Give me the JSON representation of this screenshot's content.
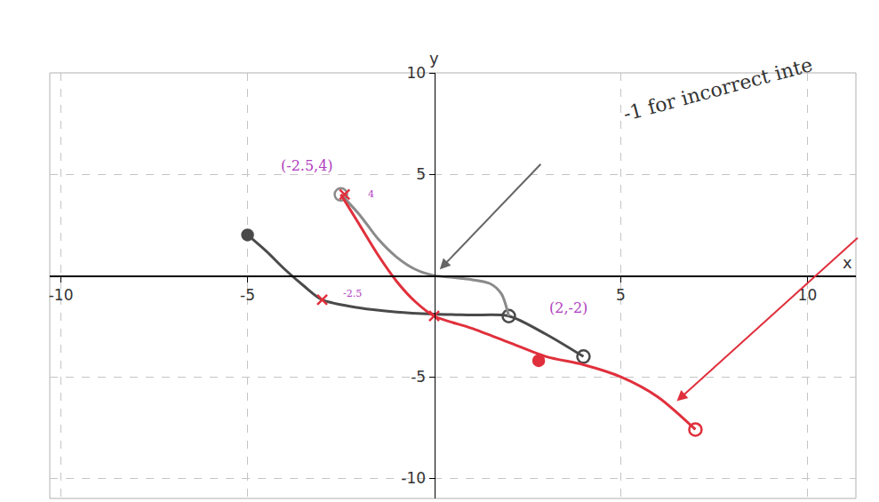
{
  "chart_data": {
    "type": "line",
    "xlim": [
      -10.3,
      11.3
    ],
    "ylim": [
      -11,
      10
    ],
    "xticks": [
      -10,
      -5,
      5,
      10
    ],
    "yticks": [
      -10,
      -5,
      5,
      10
    ],
    "grid": true,
    "x_label": "x",
    "y_label": "y",
    "series": [
      {
        "type": "line",
        "color": "#4a4a4a",
        "x": [
          -5,
          -4.5,
          -4,
          -3.5,
          -3,
          -2,
          -1,
          0,
          1,
          2,
          3,
          4
        ],
        "values": [
          2,
          1.2,
          0.3,
          -0.5,
          -1.2,
          -1.6,
          -1.8,
          -1.9,
          -1.95,
          -2,
          -2.9,
          -4
        ]
      },
      {
        "type": "scatter",
        "color": "#4a4a4a",
        "marker": "filled circle",
        "x": [
          -5
        ],
        "values": [
          2
        ]
      },
      {
        "type": "scatter",
        "color": "#4a4a4a",
        "marker": "open circle",
        "x": [
          2,
          4
        ],
        "values": [
          -2,
          -4
        ]
      },
      {
        "type": "line",
        "color": "#8a8a8a",
        "x": [
          -2.5,
          -2,
          -1.5,
          -1,
          -0.5,
          0,
          0.5,
          1,
          1.5,
          1.8,
          2
        ],
        "values": [
          4,
          3,
          1.8,
          0.9,
          0.3,
          0,
          -0.1,
          -0.2,
          -0.4,
          -0.9,
          -2
        ]
      },
      {
        "type": "scatter",
        "color": "#8a8a8a",
        "marker": "open circle",
        "x": [
          -2.5
        ],
        "values": [
          4
        ]
      },
      {
        "type": "line",
        "color": "#e0303c",
        "x": [
          -2.5,
          -2,
          -1.5,
          -1,
          -0.5,
          0,
          1,
          2,
          3,
          4,
          5,
          6,
          7
        ],
        "values": [
          4,
          2.5,
          1,
          -0.3,
          -1.3,
          -2,
          -2.6,
          -3.3,
          -4,
          -4.4,
          -5,
          -6,
          -7.6
        ]
      },
      {
        "type": "scatter",
        "color": "#e0303c",
        "marker": "x",
        "x": [
          -3,
          0,
          -2.4
        ],
        "values": [
          -1.2,
          -2,
          4
        ]
      },
      {
        "type": "scatter",
        "color": "#e0303c",
        "marker": "filled circle",
        "x": [
          2.8
        ],
        "values": [
          -4.2
        ]
      },
      {
        "type": "scatter",
        "color": "#e0303c",
        "marker": "open circle",
        "x": [
          7
        ],
        "values": [
          -7.6
        ]
      }
    ],
    "annotations": [
      {
        "text": "(-2.5,4)",
        "x": -3.4,
        "y": 5.4,
        "color": "#b040c0"
      },
      {
        "text": "(2,-2)",
        "x": 3.6,
        "y": -1.6,
        "color": "#b040c0"
      },
      {
        "text": "4",
        "x": -1.7,
        "y": 4,
        "color": "#b040c0"
      },
      {
        "text": "-2.5",
        "x": -2.2,
        "y": -0.9,
        "color": "#b040c0"
      },
      {
        "text": "-1 for incorrect inte",
        "x": 7.6,
        "y": 9.2,
        "color": "#333333"
      }
    ]
  }
}
